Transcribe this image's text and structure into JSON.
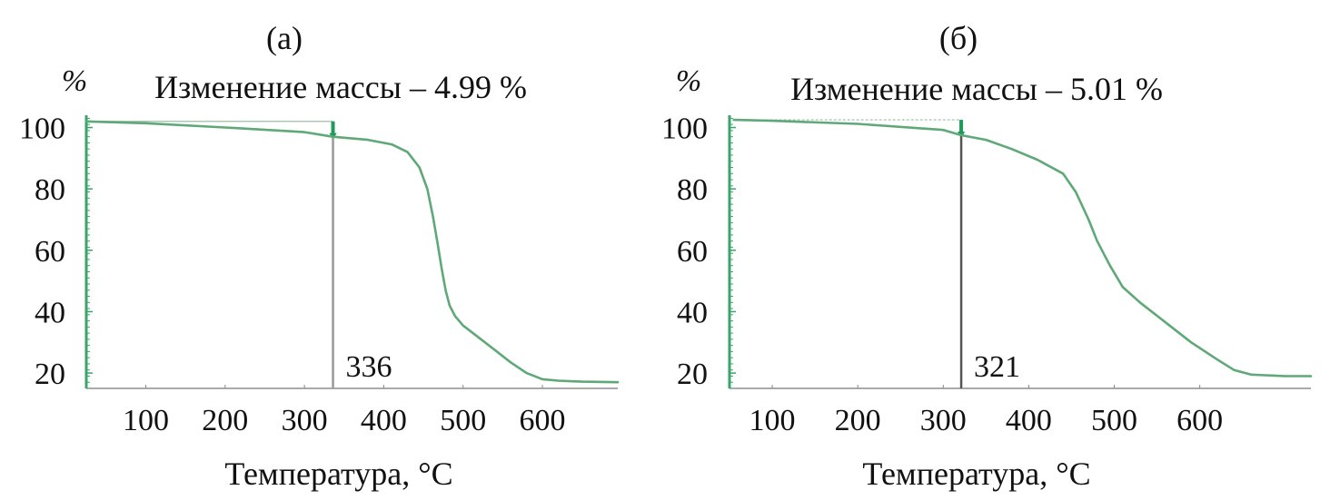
{
  "chart_data": [
    {
      "type": "line",
      "panel_label": "(а)",
      "y_unit": "%",
      "title": "Изменение массы – 4.99 %",
      "xlabel": "Температура, °С",
      "ylabel": "",
      "xlim": [
        25,
        695
      ],
      "ylim": [
        15,
        104
      ],
      "x_ticks": [
        100,
        200,
        300,
        400,
        500,
        600
      ],
      "y_ticks": [
        20,
        40,
        60,
        80,
        100
      ],
      "grid": false,
      "line_color": "#5fa878",
      "axis_color": "#3aa46b",
      "marker_color": "#999999",
      "marker": {
        "x": 336,
        "label": "336",
        "start": 102,
        "end": 97
      },
      "series": [
        {
          "x": [
            25,
            100,
            200,
            300,
            336,
            380,
            410,
            430,
            445,
            455,
            462,
            468,
            473,
            478,
            483,
            490,
            500,
            520,
            540,
            560,
            580,
            600,
            620,
            650,
            695
          ],
          "y": [
            102,
            101.4,
            100,
            98.5,
            97,
            96,
            94.5,
            92,
            87,
            80,
            71,
            62,
            54,
            47,
            42,
            38.5,
            35.5,
            31.5,
            27.5,
            23.5,
            20,
            18,
            17.5,
            17.2,
            17
          ]
        }
      ]
    },
    {
      "type": "line",
      "panel_label": "(б)",
      "y_unit": "%",
      "title": "Изменение массы – 5.01 %",
      "xlabel": "Температура, °С",
      "ylabel": "",
      "xlim": [
        50,
        730
      ],
      "ylim": [
        15,
        104
      ],
      "x_ticks": [
        100,
        200,
        300,
        400,
        500,
        600
      ],
      "y_ticks": [
        20,
        40,
        60,
        80,
        100
      ],
      "grid": false,
      "line_color": "#5fa878",
      "axis_color": "#3aa46b",
      "marker_color": "#555555",
      "marker": {
        "x": 321,
        "label": "321",
        "start": 102.5,
        "end": 97.5
      },
      "series": [
        {
          "x": [
            55,
            100,
            200,
            300,
            321,
            350,
            380,
            410,
            440,
            455,
            470,
            480,
            495,
            510,
            530,
            560,
            590,
            620,
            640,
            660,
            700,
            730
          ],
          "y": [
            102.5,
            102.2,
            101.2,
            99.2,
            97.5,
            96,
            93,
            89.5,
            85,
            79,
            70,
            63,
            55,
            48,
            43,
            36.5,
            30,
            24.5,
            21,
            19.5,
            19,
            19
          ]
        }
      ]
    }
  ]
}
